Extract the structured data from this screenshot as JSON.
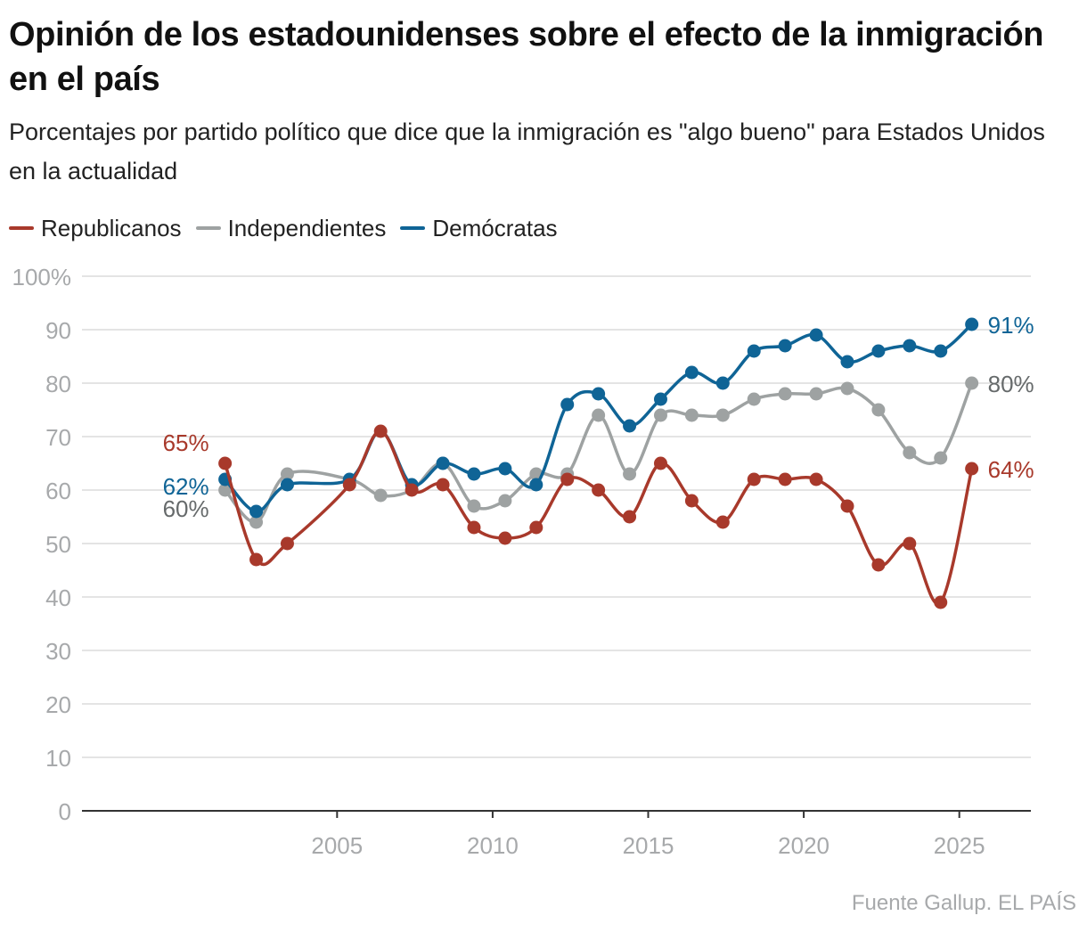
{
  "header": {
    "title": "Opinión de los estadounidenses sobre el efecto de la inmigración en el país",
    "subtitle": "Porcentajes por partido político que dice que la inmigración es \"algo bueno\" para Estados Unidos en la actualidad"
  },
  "legend": [
    {
      "label": "Republicanos",
      "color": "#a8392b"
    },
    {
      "label": "Independientes",
      "color": "#9ea2a2"
    },
    {
      "label": "Demócratas",
      "color": "#0f6496"
    }
  ],
  "footer": {
    "source": "Fuente Gallup. EL PAÍS"
  },
  "chart_data": {
    "type": "line",
    "title": "Opinión de los estadounidenses sobre el efecto de la inmigración en el país",
    "xlabel": "",
    "ylabel": "",
    "x": [
      2001.4,
      2002.4,
      2003.4,
      2005.4,
      2006.4,
      2007.4,
      2008.4,
      2009.4,
      2010.4,
      2011.4,
      2012.4,
      2013.4,
      2014.4,
      2015.4,
      2016.4,
      2017.4,
      2018.4,
      2019.4,
      2020.4,
      2021.4,
      2022.4,
      2023.4,
      2024.4,
      2025.4
    ],
    "xlim": [
      1996.8,
      2027.3
    ],
    "ylim": [
      0,
      100
    ],
    "x_ticks": [
      2005,
      2010,
      2015,
      2020,
      2025
    ],
    "x_tick_labels": [
      "2005",
      "2010",
      "2015",
      "2020",
      "2025"
    ],
    "y_ticks": [
      0,
      10,
      20,
      30,
      40,
      50,
      60,
      70,
      80,
      90,
      100
    ],
    "y_tick_labels": [
      "0",
      "10",
      "20",
      "30",
      "40",
      "50",
      "60",
      "70",
      "80",
      "90",
      "100%"
    ],
    "grid": true,
    "legend_position": "top-left",
    "series": [
      {
        "key": "ind",
        "name": "Independientes",
        "color": "#9ea2a2",
        "values": [
          60,
          54,
          63,
          62,
          59,
          60,
          65,
          57,
          58,
          63,
          63,
          74,
          63,
          74,
          74,
          74,
          77,
          78,
          78,
          79,
          75,
          67,
          66,
          80
        ],
        "markers": [
          true,
          true,
          true,
          false,
          true,
          false,
          true,
          true,
          true,
          true,
          true,
          true,
          true,
          true,
          true,
          true,
          true,
          true,
          true,
          true,
          true,
          true,
          true,
          true
        ],
        "start_label": "60%",
        "end_label": "80%"
      },
      {
        "key": "dem",
        "name": "Demócratas",
        "color": "#0f6496",
        "values": [
          62,
          56,
          61,
          62,
          71,
          61,
          65,
          63,
          64,
          61,
          76,
          78,
          72,
          77,
          82,
          80,
          86,
          87,
          89,
          84,
          86,
          87,
          86,
          91
        ],
        "markers": [
          true,
          true,
          true,
          true,
          false,
          true,
          true,
          true,
          true,
          true,
          true,
          true,
          true,
          true,
          true,
          true,
          true,
          true,
          true,
          true,
          true,
          true,
          true,
          true
        ],
        "start_label": "62%",
        "end_label": "91%"
      },
      {
        "key": "rep",
        "name": "Republicanos",
        "color": "#a8392b",
        "values": [
          65,
          47,
          50,
          61,
          71,
          60,
          61,
          53,
          51,
          53,
          62,
          60,
          55,
          65,
          58,
          54,
          62,
          62,
          62,
          57,
          46,
          50,
          39,
          64
        ],
        "markers": [
          true,
          true,
          true,
          true,
          true,
          true,
          true,
          true,
          true,
          true,
          true,
          true,
          true,
          true,
          true,
          true,
          true,
          true,
          true,
          true,
          true,
          true,
          true,
          true
        ],
        "start_label": "65%",
        "end_label": "64%"
      }
    ]
  }
}
